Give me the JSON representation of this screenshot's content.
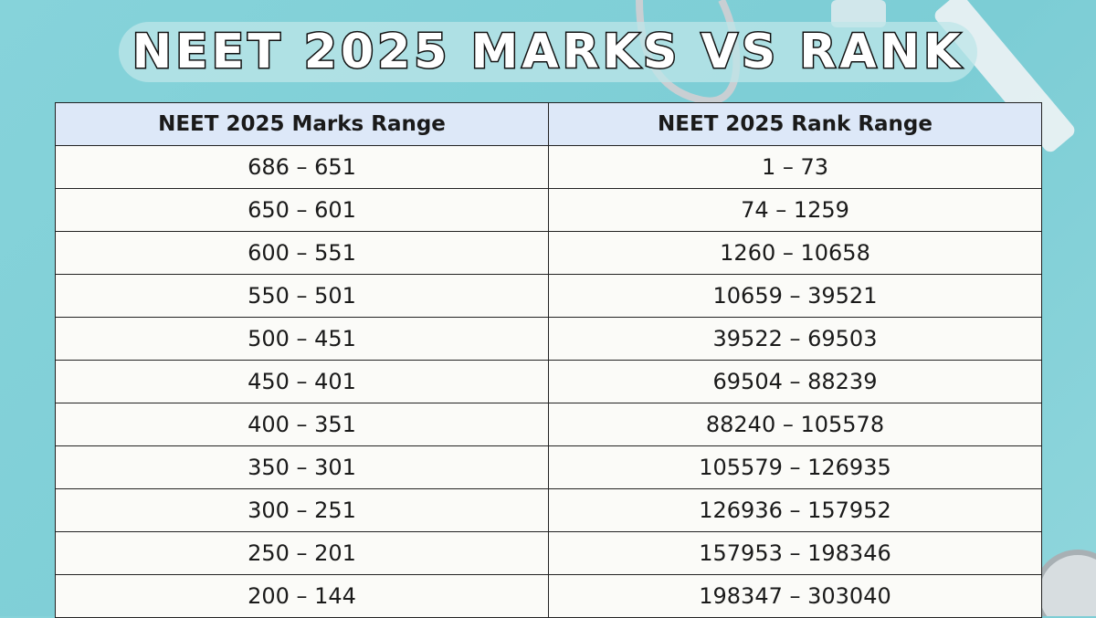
{
  "title": "NEET 2025 MARKS VS RANK",
  "table": {
    "header": [
      "NEET 2025 Marks Range",
      "NEET 2025 Rank Range"
    ],
    "rows": [
      [
        "686 – 651",
        "1 – 73"
      ],
      [
        "650 – 601",
        "74 – 1259"
      ],
      [
        "600 – 551",
        "1260 – 10658"
      ],
      [
        "550 – 501",
        "10659 – 39521"
      ],
      [
        "500 – 451",
        "39522 – 69503"
      ],
      [
        "450 – 401",
        "69504 – 88239"
      ],
      [
        "400 – 351",
        "88240 – 105578"
      ],
      [
        "350 – 301",
        "105579 – 126935"
      ],
      [
        "300 – 251",
        "126936 – 157952"
      ],
      [
        "250 – 201",
        "157953 – 198346"
      ],
      [
        "200 – 144",
        "198347 – 303040"
      ]
    ]
  }
}
